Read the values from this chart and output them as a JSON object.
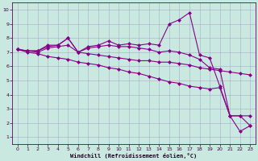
{
  "xlabel": "Windchill (Refroidissement éolien,°C)",
  "bg_color": "#c8e8e0",
  "grid_color": "#aaaacc",
  "line_color": "#880088",
  "xlim": [
    -0.5,
    23.5
  ],
  "ylim": [
    0.5,
    10.5
  ],
  "xticks": [
    0,
    1,
    2,
    3,
    4,
    5,
    6,
    7,
    8,
    9,
    10,
    11,
    12,
    13,
    14,
    15,
    16,
    17,
    18,
    19,
    20,
    21,
    22,
    23
  ],
  "yticks": [
    1,
    2,
    3,
    4,
    5,
    6,
    7,
    8,
    9,
    10
  ],
  "lines": [
    {
      "x": [
        0,
        1,
        2,
        3,
        4,
        5,
        6,
        7,
        8,
        9,
        10,
        11,
        12,
        13,
        14,
        15,
        16,
        17,
        18,
        19,
        20,
        21,
        22,
        23
      ],
      "y": [
        7.2,
        7.1,
        7.1,
        7.5,
        7.5,
        8.0,
        7.0,
        7.4,
        7.5,
        7.8,
        7.5,
        7.6,
        7.5,
        7.6,
        7.5,
        9.0,
        9.3,
        9.8,
        6.8,
        6.6,
        4.6,
        2.5,
        1.4,
        1.8
      ]
    },
    {
      "x": [
        0,
        1,
        2,
        3,
        4,
        5,
        6,
        7,
        8,
        9,
        10,
        11,
        12,
        13,
        14,
        15,
        16,
        17,
        18,
        19,
        20,
        21,
        22,
        23
      ],
      "y": [
        7.2,
        7.1,
        7.1,
        7.4,
        7.5,
        8.0,
        7.0,
        7.3,
        7.4,
        7.5,
        7.4,
        7.4,
        7.3,
        7.2,
        7.0,
        7.1,
        7.0,
        6.8,
        6.5,
        5.9,
        5.8,
        2.5,
        2.5,
        2.5
      ]
    },
    {
      "x": [
        0,
        1,
        2,
        3,
        4,
        5,
        6,
        7,
        8,
        9,
        10,
        11,
        12,
        13,
        14,
        15,
        16,
        17,
        18,
        19,
        20,
        21,
        22,
        23
      ],
      "y": [
        7.2,
        7.1,
        7.0,
        7.3,
        7.4,
        7.5,
        7.0,
        6.9,
        6.8,
        6.7,
        6.6,
        6.5,
        6.4,
        6.4,
        6.3,
        6.3,
        6.2,
        6.1,
        5.9,
        5.8,
        5.7,
        5.6,
        5.5,
        5.4
      ]
    },
    {
      "x": [
        0,
        1,
        2,
        3,
        4,
        5,
        6,
        7,
        8,
        9,
        10,
        11,
        12,
        13,
        14,
        15,
        16,
        17,
        18,
        19,
        20,
        21,
        22,
        23
      ],
      "y": [
        7.2,
        7.0,
        6.9,
        6.7,
        6.6,
        6.5,
        6.3,
        6.2,
        6.1,
        5.9,
        5.8,
        5.6,
        5.5,
        5.3,
        5.1,
        4.9,
        4.8,
        4.6,
        4.5,
        4.4,
        4.5,
        2.5,
        2.5,
        1.8
      ]
    }
  ]
}
